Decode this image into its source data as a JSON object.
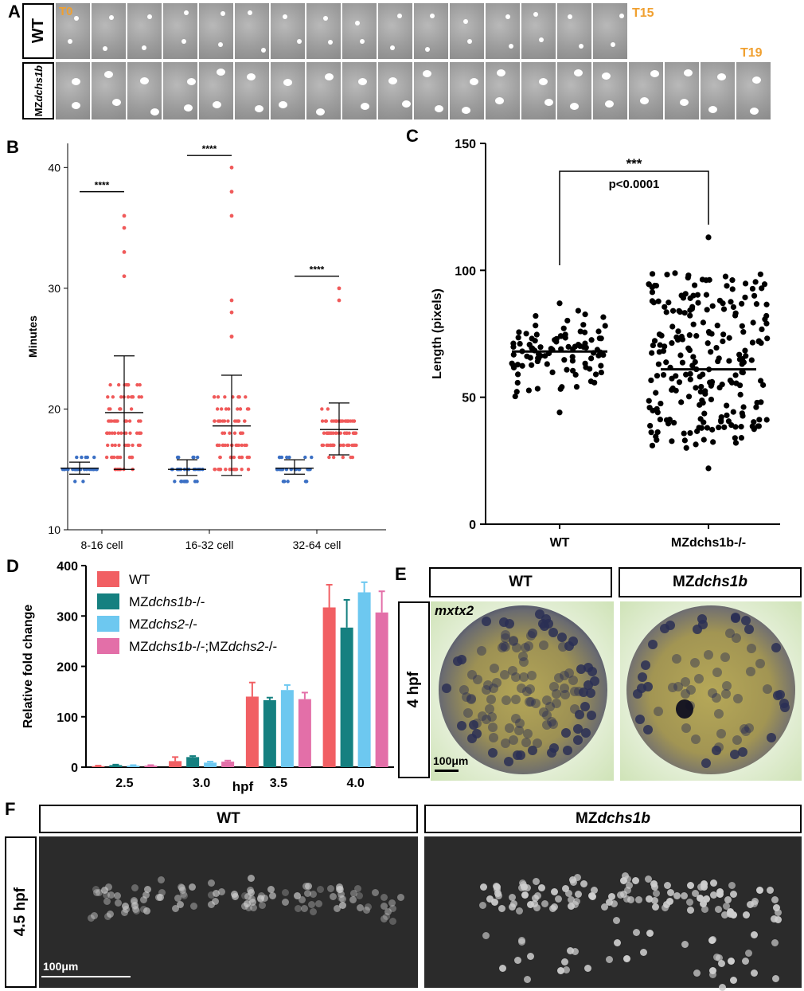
{
  "panels": {
    "A": {
      "letter": "A",
      "row1_label": "WT",
      "row2_label_prefix": "MZ",
      "row2_label_gene": "dchs1b",
      "t_start": "T0",
      "t_end_wt": "T15",
      "t_end_mz": "T19"
    },
    "B": {
      "letter": "B",
      "ylabel": "Minutes",
      "sig": "****"
    },
    "C": {
      "letter": "C",
      "ylabel": "Length (pixels)",
      "sig": "***",
      "pval": "p<0.0001",
      "xlabels": [
        "WT",
        "MZdchs1b-/-"
      ]
    },
    "D": {
      "letter": "D",
      "ylabel": "Relative fold change",
      "xlabel": "hpf",
      "legend": [
        "WT",
        "MZdchs1b-/-",
        "MZdchs2-/-",
        "MZdchs1b-/-;MZdchs2-/-"
      ]
    },
    "E": {
      "letter": "E",
      "col1": "WT",
      "col2_prefix": "MZ",
      "col2_gene": "dchs1b",
      "row_label": "4 hpf",
      "gene": "mxtx2",
      "scale": "100μm"
    },
    "F": {
      "letter": "F",
      "col1": "WT",
      "col2_prefix": "MZ",
      "col2_gene": "dchs1b",
      "row_label": "4.5 hpf",
      "scale": "100μm"
    }
  },
  "chart_data": [
    {
      "id": "B",
      "type": "scatter",
      "ylabel": "Minutes",
      "ylim": [
        10,
        42
      ],
      "yticks": [
        10,
        20,
        30,
        40
      ],
      "categories": [
        "8-16 cell",
        "16-32 cell",
        "32-64 cell"
      ],
      "series": [
        {
          "group": "WT",
          "color": "#3a6fc4",
          "mean": [
            15.1,
            15.0,
            15.1
          ],
          "sd_low": [
            14.6,
            14.5,
            14.6
          ],
          "sd_high": [
            15.6,
            15.8,
            15.8
          ]
        },
        {
          "group": "MZdchs1b",
          "color": "#f05a5a",
          "mean": [
            19.7,
            18.6,
            18.3
          ],
          "sd_low": [
            15.0,
            14.5,
            16.2
          ],
          "sd_high": [
            24.4,
            22.8,
            20.5
          ],
          "outliers": [
            [
              36,
              35,
              33,
              31
            ],
            [
              40,
              38,
              36,
              29,
              28,
              26,
              26
            ],
            [
              30,
              29
            ]
          ]
        }
      ],
      "significance": [
        "****",
        "****",
        "****"
      ]
    },
    {
      "id": "C",
      "type": "scatter",
      "ylabel": "Length (pixels)",
      "ylim": [
        0,
        150
      ],
      "yticks": [
        0,
        50,
        100,
        150
      ],
      "categories": [
        "WT",
        "MZdchs1b-/-"
      ],
      "mean": [
        68,
        61
      ],
      "range_low": [
        44,
        22
      ],
      "range_high": [
        87,
        113
      ],
      "significance": "***",
      "pvalue": "p<0.0001"
    },
    {
      "id": "D",
      "type": "bar",
      "xlabel": "hpf",
      "ylabel": "Relative fold change",
      "ylim": [
        0,
        400
      ],
      "yticks": [
        0,
        100,
        200,
        300,
        400
      ],
      "categories": [
        "2.5",
        "3.0",
        "3.5",
        "4.0"
      ],
      "series": [
        {
          "name": "WT",
          "color": "#f15f63",
          "values": [
            2,
            12,
            140,
            317
          ],
          "err": [
            1,
            8,
            28,
            45
          ]
        },
        {
          "name": "MZdchs1b-/-",
          "color": "#158080",
          "values": [
            4,
            20,
            133,
            277
          ],
          "err": [
            1,
            2,
            5,
            55
          ]
        },
        {
          "name": "MZdchs2-/-",
          "color": "#6dc8f0",
          "values": [
            3,
            9,
            153,
            347
          ],
          "err": [
            1,
            2,
            10,
            20
          ]
        },
        {
          "name": "MZdchs1b-/-;MZdchs2-/-",
          "color": "#e36fa8",
          "values": [
            3,
            11,
            135,
            307
          ],
          "err": [
            1,
            2,
            13,
            42
          ]
        }
      ]
    }
  ]
}
